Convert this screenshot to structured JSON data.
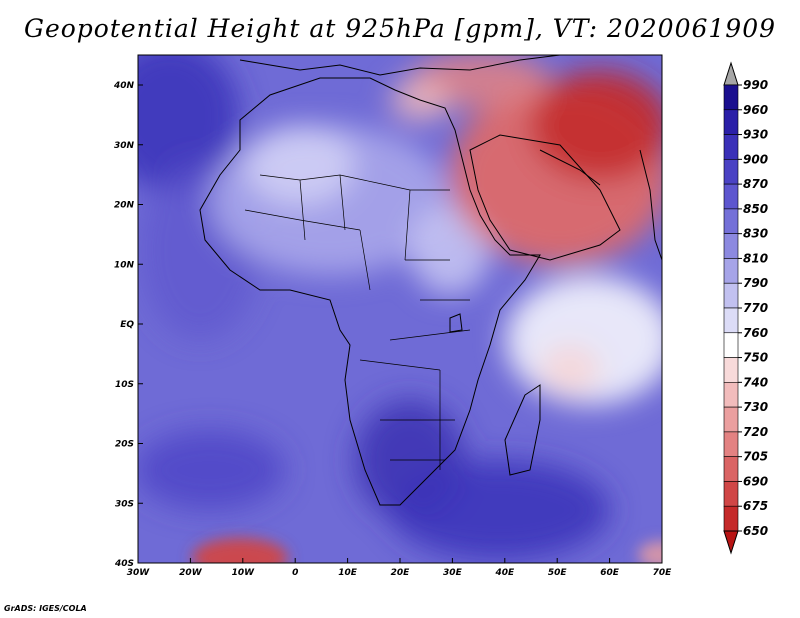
{
  "title": "Geopotential Height at 925hPa [gpm], VT: 2020061909",
  "credit": "GrADS: IGES/COLA",
  "x_ticks": [
    "30W",
    "20W",
    "10W",
    "0",
    "10E",
    "20E",
    "30E",
    "40E",
    "50E",
    "60E",
    "70E"
  ],
  "y_ticks": [
    "40N",
    "30N",
    "20N",
    "10N",
    "EQ",
    "10S",
    "20S",
    "30S",
    "40S"
  ],
  "colorbar": {
    "labels": [
      "990",
      "960",
      "930",
      "900",
      "870",
      "850",
      "830",
      "810",
      "790",
      "770",
      "760",
      "750",
      "740",
      "730",
      "720",
      "705",
      "690",
      "675",
      "650"
    ],
    "colors": [
      "#1a0f8f",
      "#2a1fa8",
      "#3a30b8",
      "#4a42c4",
      "#5d56cf",
      "#7470d8",
      "#8c89e0",
      "#a6a4e8",
      "#c2c1f0",
      "#dcdcf7",
      "#ffffff",
      "#f8dada",
      "#f2bcbc",
      "#eb9f9f",
      "#e38282",
      "#da6464",
      "#d04646",
      "#c52a2a",
      "#b81414"
    ],
    "over_color": "#a6a6a6",
    "under_color": "#b81414"
  },
  "field": {
    "background": "#6f6bd6",
    "blobs": [
      {
        "name": "north-atlantic-low",
        "color": "#3b32b8",
        "opacity": 0.85
      },
      {
        "name": "east-atlantic-mid",
        "color": "#5a54cc",
        "opacity": 0.6
      },
      {
        "name": "sahara-light",
        "color": "#a9a6ea",
        "opacity": 0.9
      },
      {
        "name": "sahara-white",
        "color": "#d6d5f6",
        "opacity": 0.8
      },
      {
        "name": "ethiopia-light",
        "color": "#c9c8f3",
        "opacity": 0.85
      },
      {
        "name": "arabia-red",
        "color": "#dc6a6a",
        "opacity": 0.95
      },
      {
        "name": "iran-dark-red",
        "color": "#c32a2a",
        "opacity": 0.9
      },
      {
        "name": "mediterranean-red",
        "color": "#e38282",
        "opacity": 0.85
      },
      {
        "name": "mediterranean-pink",
        "color": "#f2bcbc",
        "opacity": 0.8
      },
      {
        "name": "indian-ocean-white",
        "color": "#eeeefb",
        "opacity": 0.95
      },
      {
        "name": "indian-ocean-pink",
        "color": "#f6d6d6",
        "opacity": 0.9
      },
      {
        "name": "southern-africa-dark",
        "color": "#3d33b4",
        "opacity": 0.9
      },
      {
        "name": "south-indian-dark",
        "color": "#3b32b8",
        "opacity": 0.85
      },
      {
        "name": "south-atlantic-dark",
        "color": "#4a42c4",
        "opacity": 0.75
      },
      {
        "name": "southwest-red",
        "color": "#d04646",
        "opacity": 0.95
      },
      {
        "name": "southeast-pink",
        "color": "#eb9f9f",
        "opacity": 0.8
      }
    ]
  }
}
